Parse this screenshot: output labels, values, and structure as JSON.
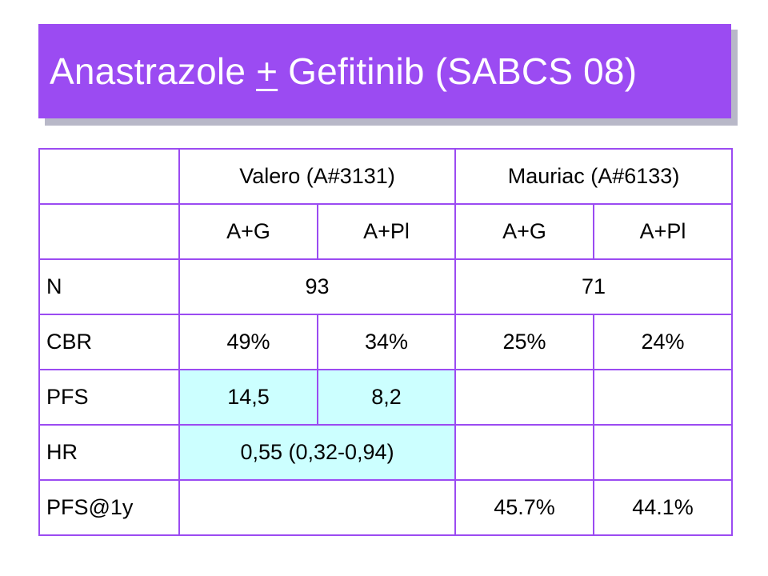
{
  "title": {
    "before": "Anastrazole ",
    "plus_minus": "+",
    "after": " Gefitinib (SABCS 08)"
  },
  "table": {
    "study_headers": [
      "Valero (A#3131)",
      "Mauriac (A#6133)"
    ],
    "arm_headers": [
      "A+G",
      "A+Pl",
      "A+G",
      "A+Pl"
    ],
    "rows": {
      "n": {
        "label": "N",
        "valero": "93",
        "mauriac": "71"
      },
      "cbr": {
        "label": "CBR",
        "values": [
          "49%",
          "34%",
          "25%",
          "24%"
        ]
      },
      "pfs": {
        "label": "PFS",
        "values": [
          "14,5",
          "8,2",
          "",
          ""
        ]
      },
      "hr": {
        "label": "HR",
        "valero": "0,55 (0,32-0,94)",
        "mauriac_ag": "",
        "mauriac_pl": ""
      },
      "pfs1y": {
        "label": "PFS@1y",
        "valero": "",
        "values": [
          "45.7%",
          "44.1%"
        ]
      }
    }
  },
  "colors": {
    "accent": "#9b4bf2",
    "title_text": "#ffffff",
    "highlight": "#ccffff",
    "shadow": "#b8b8c8"
  }
}
